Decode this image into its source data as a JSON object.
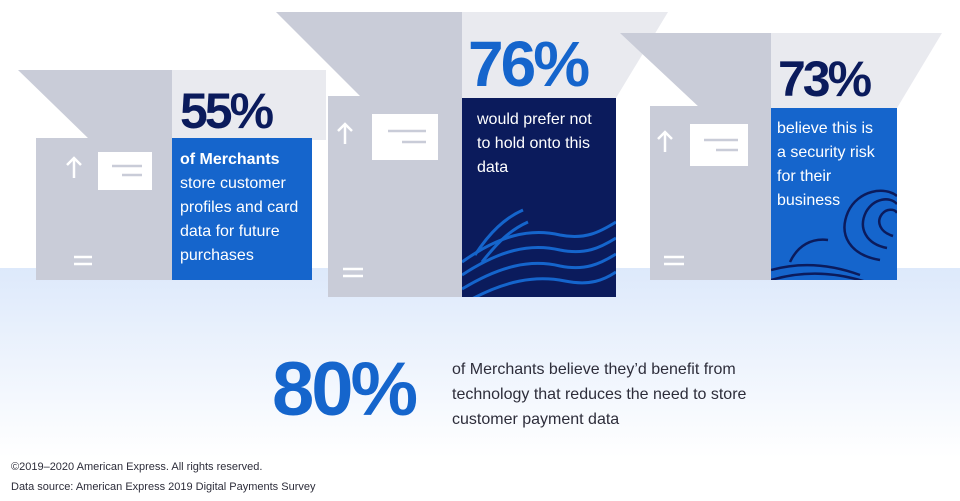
{
  "colors": {
    "navy": "#0b1b5c",
    "blue": "#1565cc",
    "gray": "#c9ccd8",
    "light_gray": "#e9eaef",
    "glow": "#dde9fb",
    "text_dark": "#2d2d3a"
  },
  "panels": [
    {
      "stat": "55%",
      "bold": "of Merchants",
      "rest": "store customer profiles and card data for future purchases",
      "fill": "blue"
    },
    {
      "stat": "76%",
      "bold": "",
      "rest": "would prefer not to hold onto this data",
      "fill": "navy"
    },
    {
      "stat": "73%",
      "bold": "",
      "rest": "believe this is a security risk for their business",
      "fill": "blue"
    }
  ],
  "summary": {
    "stat": "80%",
    "text": "of Merchants believe they’d benefit from technology that reduces the need to store customer payment data"
  },
  "footer": {
    "copyright": "©2019–2020 American Express. All rights reserved.",
    "source": "Data source: American Express 2019 Digital Payments Survey"
  },
  "icons": [
    "up-arrow-icon",
    "card-icon",
    "equals-icon",
    "wave-pattern-icon"
  ]
}
